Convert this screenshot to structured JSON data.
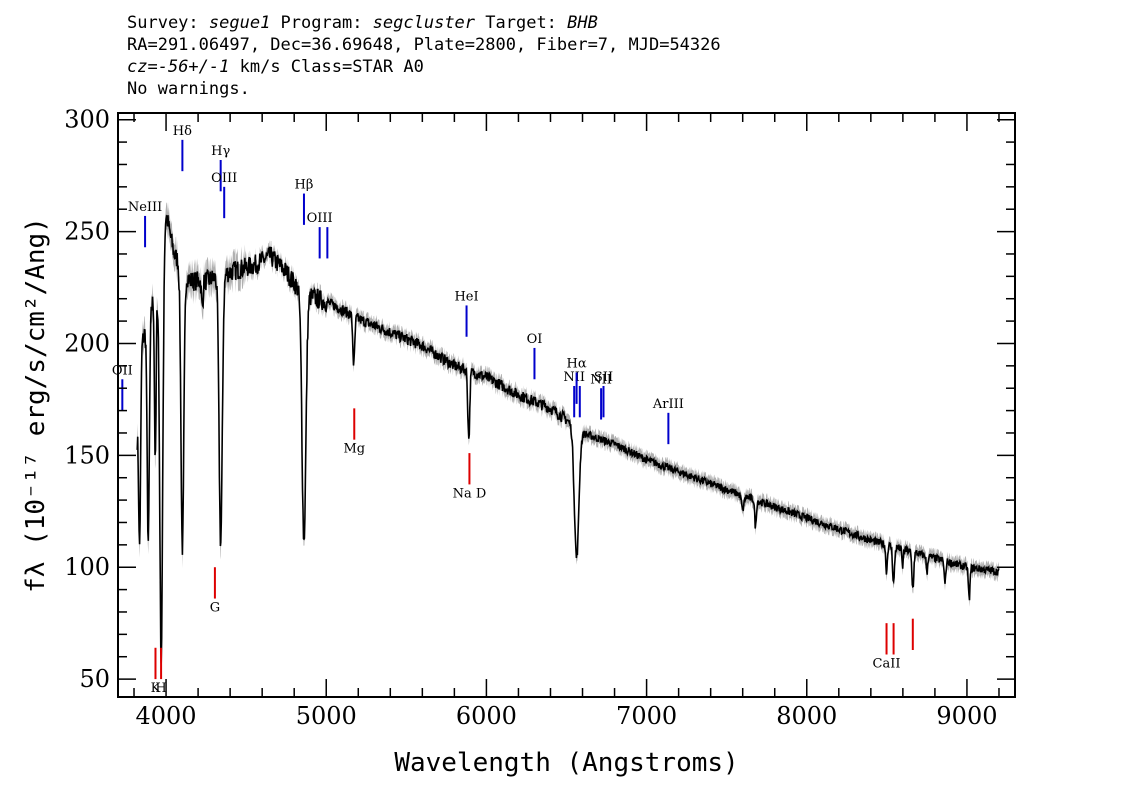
{
  "header": {
    "survey_label": "Survey: ",
    "survey": "segue1",
    "program_label": " Program: ",
    "program": "segcluster",
    "target_label": " Target: ",
    "target": "BHB",
    "line2": "RA=291.06497, Dec=36.69648, Plate=2800, Fiber=7, MJD=54326",
    "cz_label": "cz=",
    "cz_value": "-56+/-1",
    "cz_rest": " km/s Class=STAR A0",
    "line4": "No warnings."
  },
  "chart_data": {
    "type": "line",
    "xlabel": "Wavelength (Angstroms)",
    "ylabel": "fλ (10⁻¹⁷ erg/s/cm²/Ang)",
    "xlim": [
      3700,
      9300
    ],
    "ylim": [
      42,
      303
    ],
    "x_ticks": [
      4000,
      5000,
      6000,
      7000,
      8000,
      9000
    ],
    "y_ticks": [
      50,
      100,
      150,
      200,
      250,
      300
    ],
    "colors": {
      "spectrum": "#000000",
      "error": "#b0b0b0",
      "emission": "#0000cc",
      "absorption": "#dd0000"
    },
    "continuum": [
      [
        3820,
        160
      ],
      [
        3850,
        200
      ],
      [
        3900,
        215
      ],
      [
        3950,
        225
      ],
      [
        4000,
        258
      ],
      [
        4050,
        240
      ],
      [
        4150,
        228
      ],
      [
        4250,
        228
      ],
      [
        4400,
        232
      ],
      [
        4550,
        235
      ],
      [
        4650,
        239
      ],
      [
        4750,
        232
      ],
      [
        4850,
        222
      ],
      [
        4950,
        220
      ],
      [
        5050,
        217
      ],
      [
        5200,
        211
      ],
      [
        5400,
        205
      ],
      [
        5600,
        199
      ],
      [
        5800,
        190
      ],
      [
        6000,
        185
      ],
      [
        6200,
        177
      ],
      [
        6400,
        171
      ],
      [
        6500,
        166
      ],
      [
        6600,
        160
      ],
      [
        6800,
        155
      ],
      [
        7000,
        148
      ],
      [
        7300,
        140
      ],
      [
        7600,
        132
      ],
      [
        8000,
        122
      ],
      [
        8400,
        112
      ],
      [
        8800,
        104
      ],
      [
        9000,
        100
      ],
      [
        9200,
        98
      ]
    ],
    "absorption_features": [
      {
        "x": 3835,
        "depth": 70,
        "width": 6
      },
      {
        "x": 3889,
        "depth": 100,
        "width": 7
      },
      {
        "x": 3933,
        "depth": 75,
        "width": 5
      },
      {
        "x": 3970,
        "depth": 180,
        "width": 9
      },
      {
        "x": 4102,
        "depth": 125,
        "width": 9
      },
      {
        "x": 4226,
        "depth": 12,
        "width": 5
      },
      {
        "x": 4341,
        "depth": 120,
        "width": 10
      },
      {
        "x": 4861,
        "depth": 110,
        "width": 12
      },
      {
        "x": 5172,
        "depth": 22,
        "width": 6
      },
      {
        "x": 5890,
        "depth": 30,
        "width": 6
      },
      {
        "x": 6563,
        "depth": 58,
        "width": 14
      },
      {
        "x": 7600,
        "depth": 6,
        "width": 8
      },
      {
        "x": 7680,
        "depth": 12,
        "width": 5
      },
      {
        "x": 8498,
        "depth": 12,
        "width": 5
      },
      {
        "x": 8542,
        "depth": 16,
        "width": 6
      },
      {
        "x": 8598,
        "depth": 8,
        "width": 4
      },
      {
        "x": 8662,
        "depth": 16,
        "width": 6
      },
      {
        "x": 8750,
        "depth": 8,
        "width": 4
      },
      {
        "x": 8863,
        "depth": 10,
        "width": 5
      },
      {
        "x": 9014,
        "depth": 14,
        "width": 5
      }
    ],
    "emission_lines": [
      {
        "label": "OII",
        "x": 3727,
        "y_top": 184,
        "y_bot": 170,
        "label_y": 188
      },
      {
        "label": "NeIII",
        "x": 3869,
        "y_top": 257,
        "y_bot": 243,
        "label_y": 261
      },
      {
        "label": "Hδ",
        "x": 4102,
        "y_top": 291,
        "y_bot": 277,
        "label_y": 295
      },
      {
        "label": "Hγ",
        "x": 4341,
        "y_top": 282,
        "y_bot": 268,
        "label_y": 286
      },
      {
        "label": "OIII",
        "x": 4363,
        "y_top": 270,
        "y_bot": 256,
        "label_y": 274
      },
      {
        "label": "Hβ",
        "x": 4861,
        "y_top": 267,
        "y_bot": 253,
        "label_y": 271
      },
      {
        "label": "OIII",
        "x": 4959,
        "y_top": 252,
        "y_bot": 238,
        "label_y": 256
      },
      {
        "label": "",
        "x": 5007,
        "y_top": 252,
        "y_bot": 238,
        "label_y": 0
      },
      {
        "label": "HeI",
        "x": 5876,
        "y_top": 217,
        "y_bot": 203,
        "label_y": 221
      },
      {
        "label": "OI",
        "x": 6300,
        "y_top": 198,
        "y_bot": 184,
        "label_y": 202
      },
      {
        "label": "NII",
        "x": 6548,
        "y_top": 181,
        "y_bot": 167,
        "label_y": 185
      },
      {
        "label": "Hα",
        "x": 6563,
        "y_top": 187,
        "y_bot": 173,
        "label_y": 191
      },
      {
        "label": "",
        "x": 6583,
        "y_top": 181,
        "y_bot": 167,
        "label_y": 0
      },
      {
        "label": "NII",
        "x": 6716,
        "y_top": 180,
        "y_bot": 166,
        "label_y": 184
      },
      {
        "label": "SII",
        "x": 6731,
        "y_top": 181,
        "y_bot": 167,
        "label_y": 185
      },
      {
        "label": "ArIII",
        "x": 7136,
        "y_top": 169,
        "y_bot": 155,
        "label_y": 173
      }
    ],
    "absorption_lines": [
      {
        "label": "K",
        "x": 3934,
        "y_top": 64,
        "y_bot": 50,
        "label_y": 46
      },
      {
        "label": "H",
        "x": 3969,
        "y_top": 64,
        "y_bot": 50,
        "label_y": 46
      },
      {
        "label": "G",
        "x": 4305,
        "y_top": 100,
        "y_bot": 86,
        "label_y": 82
      },
      {
        "label": "Mg",
        "x": 5175,
        "y_top": 171,
        "y_bot": 157,
        "label_y": 153
      },
      {
        "label": "Na D",
        "x": 5894,
        "y_top": 151,
        "y_bot": 137,
        "label_y": 133
      },
      {
        "label": "CaII",
        "x": 8498,
        "y_top": 75,
        "y_bot": 61,
        "label_y": 57
      },
      {
        "label": "",
        "x": 8542,
        "y_top": 75,
        "y_bot": 61,
        "label_y": 0
      },
      {
        "label": "",
        "x": 8662,
        "y_top": 77,
        "y_bot": 63,
        "label_y": 0
      }
    ]
  }
}
